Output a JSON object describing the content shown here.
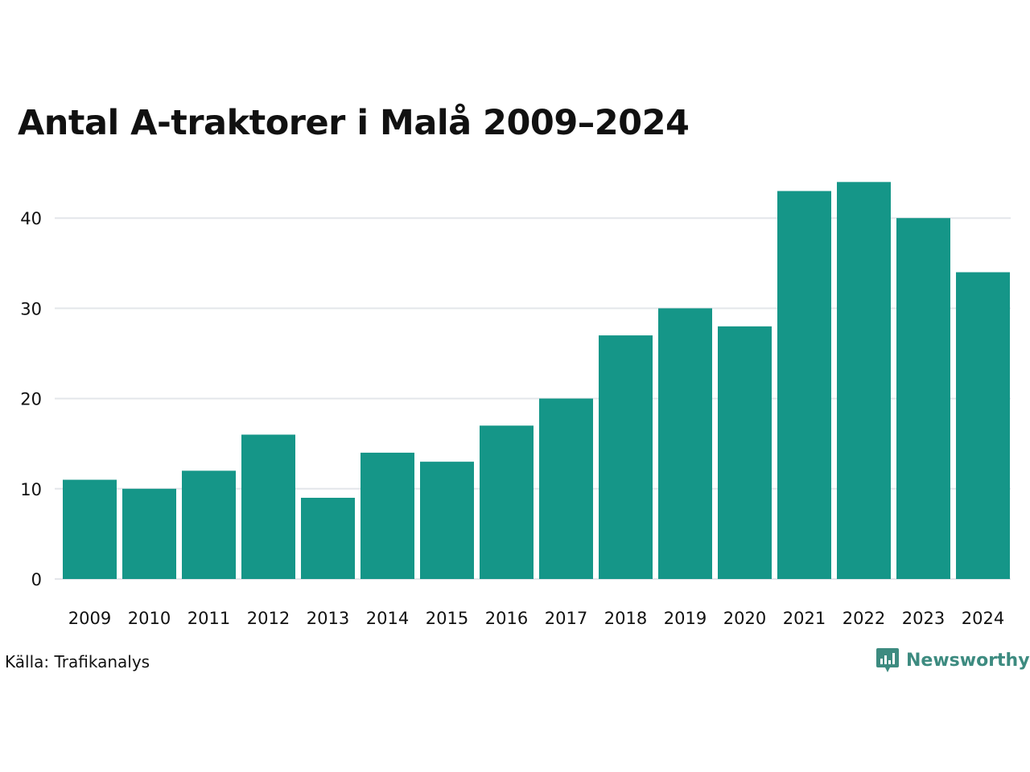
{
  "title": "Antal A-traktorer i Malå 2009–2024",
  "source": "Källa: Trafikanalys",
  "brand": {
    "name": "Newsworthy",
    "icon": "newsworthy-chart-bubble-icon"
  },
  "colors": {
    "bar": "#159688",
    "grid": "#e3e6ea",
    "brand": "#3d8b80",
    "text": "#111111"
  },
  "chart_data": {
    "type": "bar",
    "categories": [
      "2009",
      "2010",
      "2011",
      "2012",
      "2013",
      "2014",
      "2015",
      "2016",
      "2017",
      "2018",
      "2019",
      "2020",
      "2021",
      "2022",
      "2023",
      "2024"
    ],
    "values": [
      11,
      10,
      12,
      16,
      9,
      14,
      13,
      17,
      20,
      27,
      30,
      28,
      43,
      44,
      40,
      34
    ],
    "yticks": [
      0,
      10,
      20,
      30,
      40
    ],
    "ylim": [
      0,
      45
    ],
    "grid": true,
    "legend": "none"
  }
}
